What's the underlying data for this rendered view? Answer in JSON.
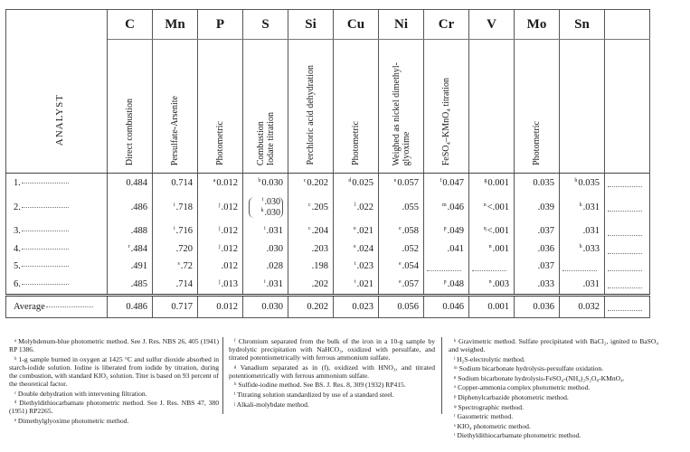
{
  "table": {
    "analyst_header": "ANALYST",
    "columns": [
      {
        "element": "C",
        "method": "Direct combustion"
      },
      {
        "element": "Mn",
        "method": "Persulfate-Arsenite"
      },
      {
        "element": "P",
        "method": "Photometric"
      },
      {
        "element": "S",
        "method": "Combustion\nIodate titration"
      },
      {
        "element": "Si",
        "method": "Perchloric acid dehydration"
      },
      {
        "element": "Cu",
        "method": "Photometric"
      },
      {
        "element": "Ni",
        "method": "Weighed as nickel dimethyl-\nglyoxime"
      },
      {
        "element": "Cr",
        "method": "FeSO₄–KMnO₄ titration"
      },
      {
        "element": "V",
        "method": ""
      },
      {
        "element": "Mo",
        "method": "Photometric"
      },
      {
        "element": "Sn",
        "method": ""
      },
      {
        "element": "",
        "method": ""
      }
    ],
    "rows": [
      {
        "analyst": "1.",
        "cells": [
          [
            "",
            "0.484"
          ],
          [
            "",
            "0.714"
          ],
          [
            "a",
            "0.012"
          ],
          [
            "b",
            "0.030"
          ],
          [
            "c",
            "0.202"
          ],
          [
            "d",
            "0.025"
          ],
          [
            "e",
            "0.057"
          ],
          [
            "f",
            "0.047"
          ],
          [
            "g",
            "0.001"
          ],
          [
            "",
            "0.035"
          ],
          [
            "h",
            "0.035"
          ],
          [
            "",
            ""
          ]
        ]
      },
      {
        "analyst": "2.",
        "cells": [
          [
            "",
            ".486"
          ],
          [
            "i",
            ".718"
          ],
          [
            "j",
            ".012"
          ],
          [
            "i",
            ".030|k|.030"
          ],
          [
            "c",
            ".205"
          ],
          [
            "l",
            ".022"
          ],
          [
            "",
            ".055"
          ],
          [
            "m",
            ".046"
          ],
          [
            "n",
            "<.001"
          ],
          [
            "",
            ".039"
          ],
          [
            "h",
            ".031"
          ],
          [
            "",
            ""
          ]
        ]
      },
      {
        "analyst": "3.",
        "cells": [
          [
            "",
            ".488"
          ],
          [
            "i",
            ".716"
          ],
          [
            "j",
            ".012"
          ],
          [
            "i",
            ".031"
          ],
          [
            "c",
            ".204"
          ],
          [
            "o",
            ".021"
          ],
          [
            "e",
            ".058"
          ],
          [
            "p",
            ".049"
          ],
          [
            "q",
            "<.001"
          ],
          [
            "",
            ".037"
          ],
          [
            "",
            ".031"
          ],
          [
            "",
            ""
          ]
        ]
      },
      {
        "analyst": "4.",
        "cells": [
          [
            "r",
            ".484"
          ],
          [
            "",
            ".720"
          ],
          [
            "j",
            ".012"
          ],
          [
            "",
            ".030"
          ],
          [
            "",
            ".203"
          ],
          [
            "o",
            ".024"
          ],
          [
            "",
            ".052"
          ],
          [
            "",
            ".041"
          ],
          [
            "n",
            ".001"
          ],
          [
            "",
            ".036"
          ],
          [
            "h",
            ".033"
          ],
          [
            "",
            ""
          ]
        ]
      },
      {
        "analyst": "5.",
        "cells": [
          [
            "",
            ".491"
          ],
          [
            "s",
            ".72"
          ],
          [
            "",
            ".012"
          ],
          [
            "",
            ".028"
          ],
          [
            "",
            ".198"
          ],
          [
            "t",
            ".023"
          ],
          [
            "e",
            ".054"
          ],
          [
            "",
            ""
          ],
          [
            "",
            ""
          ],
          [
            "",
            ".037"
          ],
          [
            "",
            ""
          ],
          [
            "",
            ""
          ]
        ]
      },
      {
        "analyst": "6.",
        "cells": [
          [
            "",
            ".485"
          ],
          [
            "",
            ".714"
          ],
          [
            "j",
            ".013"
          ],
          [
            "i",
            ".031"
          ],
          [
            "",
            ".202"
          ],
          [
            "t",
            ".021"
          ],
          [
            "e",
            ".057"
          ],
          [
            "p",
            ".048"
          ],
          [
            "n",
            ".003"
          ],
          [
            "",
            ".033"
          ],
          [
            "",
            ".031"
          ],
          [
            "",
            ""
          ]
        ]
      }
    ],
    "average": {
      "label": "Average",
      "cells": [
        "0.486",
        "0.717",
        "0.012",
        "0.030",
        "0.202",
        "0.023",
        "0.056",
        "0.046",
        "0.001",
        "0.036",
        "0.032",
        ""
      ]
    }
  },
  "footnotes": {
    "col1": [
      "ᵃ Molybdenum-blue photometric method. See J. Res. NBS 26, 405 (1941) RP 1386.",
      "ᵇ 1-g sample burned in oxygen at 1425 °C and sulfur dioxide absorbed in starch-iodide solution. Iodine is liberated from iodide by titration, during the combustion, with standard KIO₃ solution. Titer is based on 93 percent of the theoretical factor.",
      "ᶜ Double dehydration with intervening filtration.",
      "ᵈ Diethyldithiocarbamate photometric method. See J. Res. NBS 47, 380 (1951) RP2265.",
      "ᵉ Dimethylglyoxime photometric method."
    ],
    "col2": [
      "ᶠ Chromium separated from the bulk of the iron in a 10-g sample by hydrolytic precipitation with NaHCO₃, oxidized with persulfate, and titrated potentiometrically with ferrous ammonium sulfate.",
      "ᵍ Vanadium separated as in (f), oxidized with HNO₃, and titrated potentiometrically with ferrous ammonium sulfate.",
      "ʰ Sulfide-iodine method. See BS. J. Res. 8, 309 (1932) RP415.",
      "ⁱ Titrating solution standardized by use of a standard steel.",
      "ʲ Alkali-molybdate method."
    ],
    "col3": [
      "ᵏ Gravimetric method. Sulfate precipitated with BaCl₂, ignited to BaSO₄ and weighed.",
      "ˡ H₂S-electrolytic method.",
      "ᵐ Sodium bicarbonate hydrolysis-persulfate oxidation.",
      "ⁿ Sodium bicarbonate hydrolysis-FeSO₄-(NH₄)₂S₂O₈-KMnO₄.",
      "ᵒ Copper-ammonia complex photometric method.",
      "ᵖ Diphenylcarbazide photometric method.",
      "ᵠ Spectrographic method.",
      "ʳ Gasometric method.",
      "ˢ KIO₄ photometric method.",
      "ᵗ Diethyldithiocarbamate photometric method."
    ]
  }
}
